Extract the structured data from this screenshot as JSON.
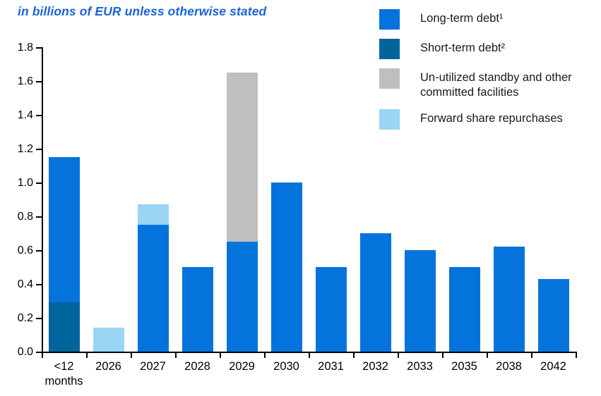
{
  "title": "in billions of EUR unless otherwise stated",
  "colors": {
    "long_term": "#0473DC",
    "short_term": "#00649D",
    "standby": "#BFBFBF",
    "forward": "#9BD5F5",
    "title_text": "#1B63D6",
    "axis": "#000000",
    "legend_text": "#1A1A1A"
  },
  "legend": {
    "items": [
      {
        "label": "Long-term debt¹",
        "color_key": "long_term"
      },
      {
        "label": "Short-term debt²",
        "color_key": "short_term"
      },
      {
        "label": "Un-utilized standby and other committed facilities",
        "color_key": "standby"
      },
      {
        "label": "Forward share repurchases",
        "color_key": "forward"
      }
    ]
  },
  "chart_data": {
    "type": "bar",
    "stacked": true,
    "title": "in billions of EUR unless otherwise stated",
    "categories": [
      "<12\nmonths",
      "2026",
      "2027",
      "2028",
      "2029",
      "2030",
      "2031",
      "2032",
      "2033",
      "2035",
      "2038",
      "2042"
    ],
    "series": [
      {
        "name": "Short-term debt²",
        "color_key": "short_term",
        "values": [
          0.29,
          0,
          0,
          0,
          0,
          0,
          0,
          0,
          0,
          0,
          0,
          0
        ]
      },
      {
        "name": "Long-term debt¹",
        "color_key": "long_term",
        "values": [
          0.86,
          0,
          0.75,
          0.5,
          0.65,
          1.0,
          0.5,
          0.7,
          0.6,
          0.5,
          0.62,
          0.43
        ]
      },
      {
        "name": "Un-utilized standby and other committed facilities",
        "color_key": "standby",
        "values": [
          0,
          0,
          0,
          0,
          1.0,
          0,
          0,
          0,
          0,
          0,
          0,
          0
        ]
      },
      {
        "name": "Forward share repurchases",
        "color_key": "forward",
        "values": [
          0,
          0.14,
          0.12,
          0,
          0,
          0,
          0,
          0,
          0,
          0,
          0,
          0
        ]
      }
    ],
    "totals": [
      1.15,
      0.14,
      0.87,
      0.5,
      1.65,
      1.0,
      0.5,
      0.7,
      0.6,
      0.5,
      0.62,
      0.43
    ],
    "ylim": [
      0,
      1.8
    ],
    "ytick_step": 0.2,
    "ytick_labels": [
      "0.0",
      "0.2",
      "0.4",
      "0.6",
      "0.8",
      "1.0",
      "1.2",
      "1.4",
      "1.6",
      "1.8"
    ],
    "grid": false,
    "legend_position": "top-right",
    "xlabel": "",
    "ylabel": ""
  }
}
